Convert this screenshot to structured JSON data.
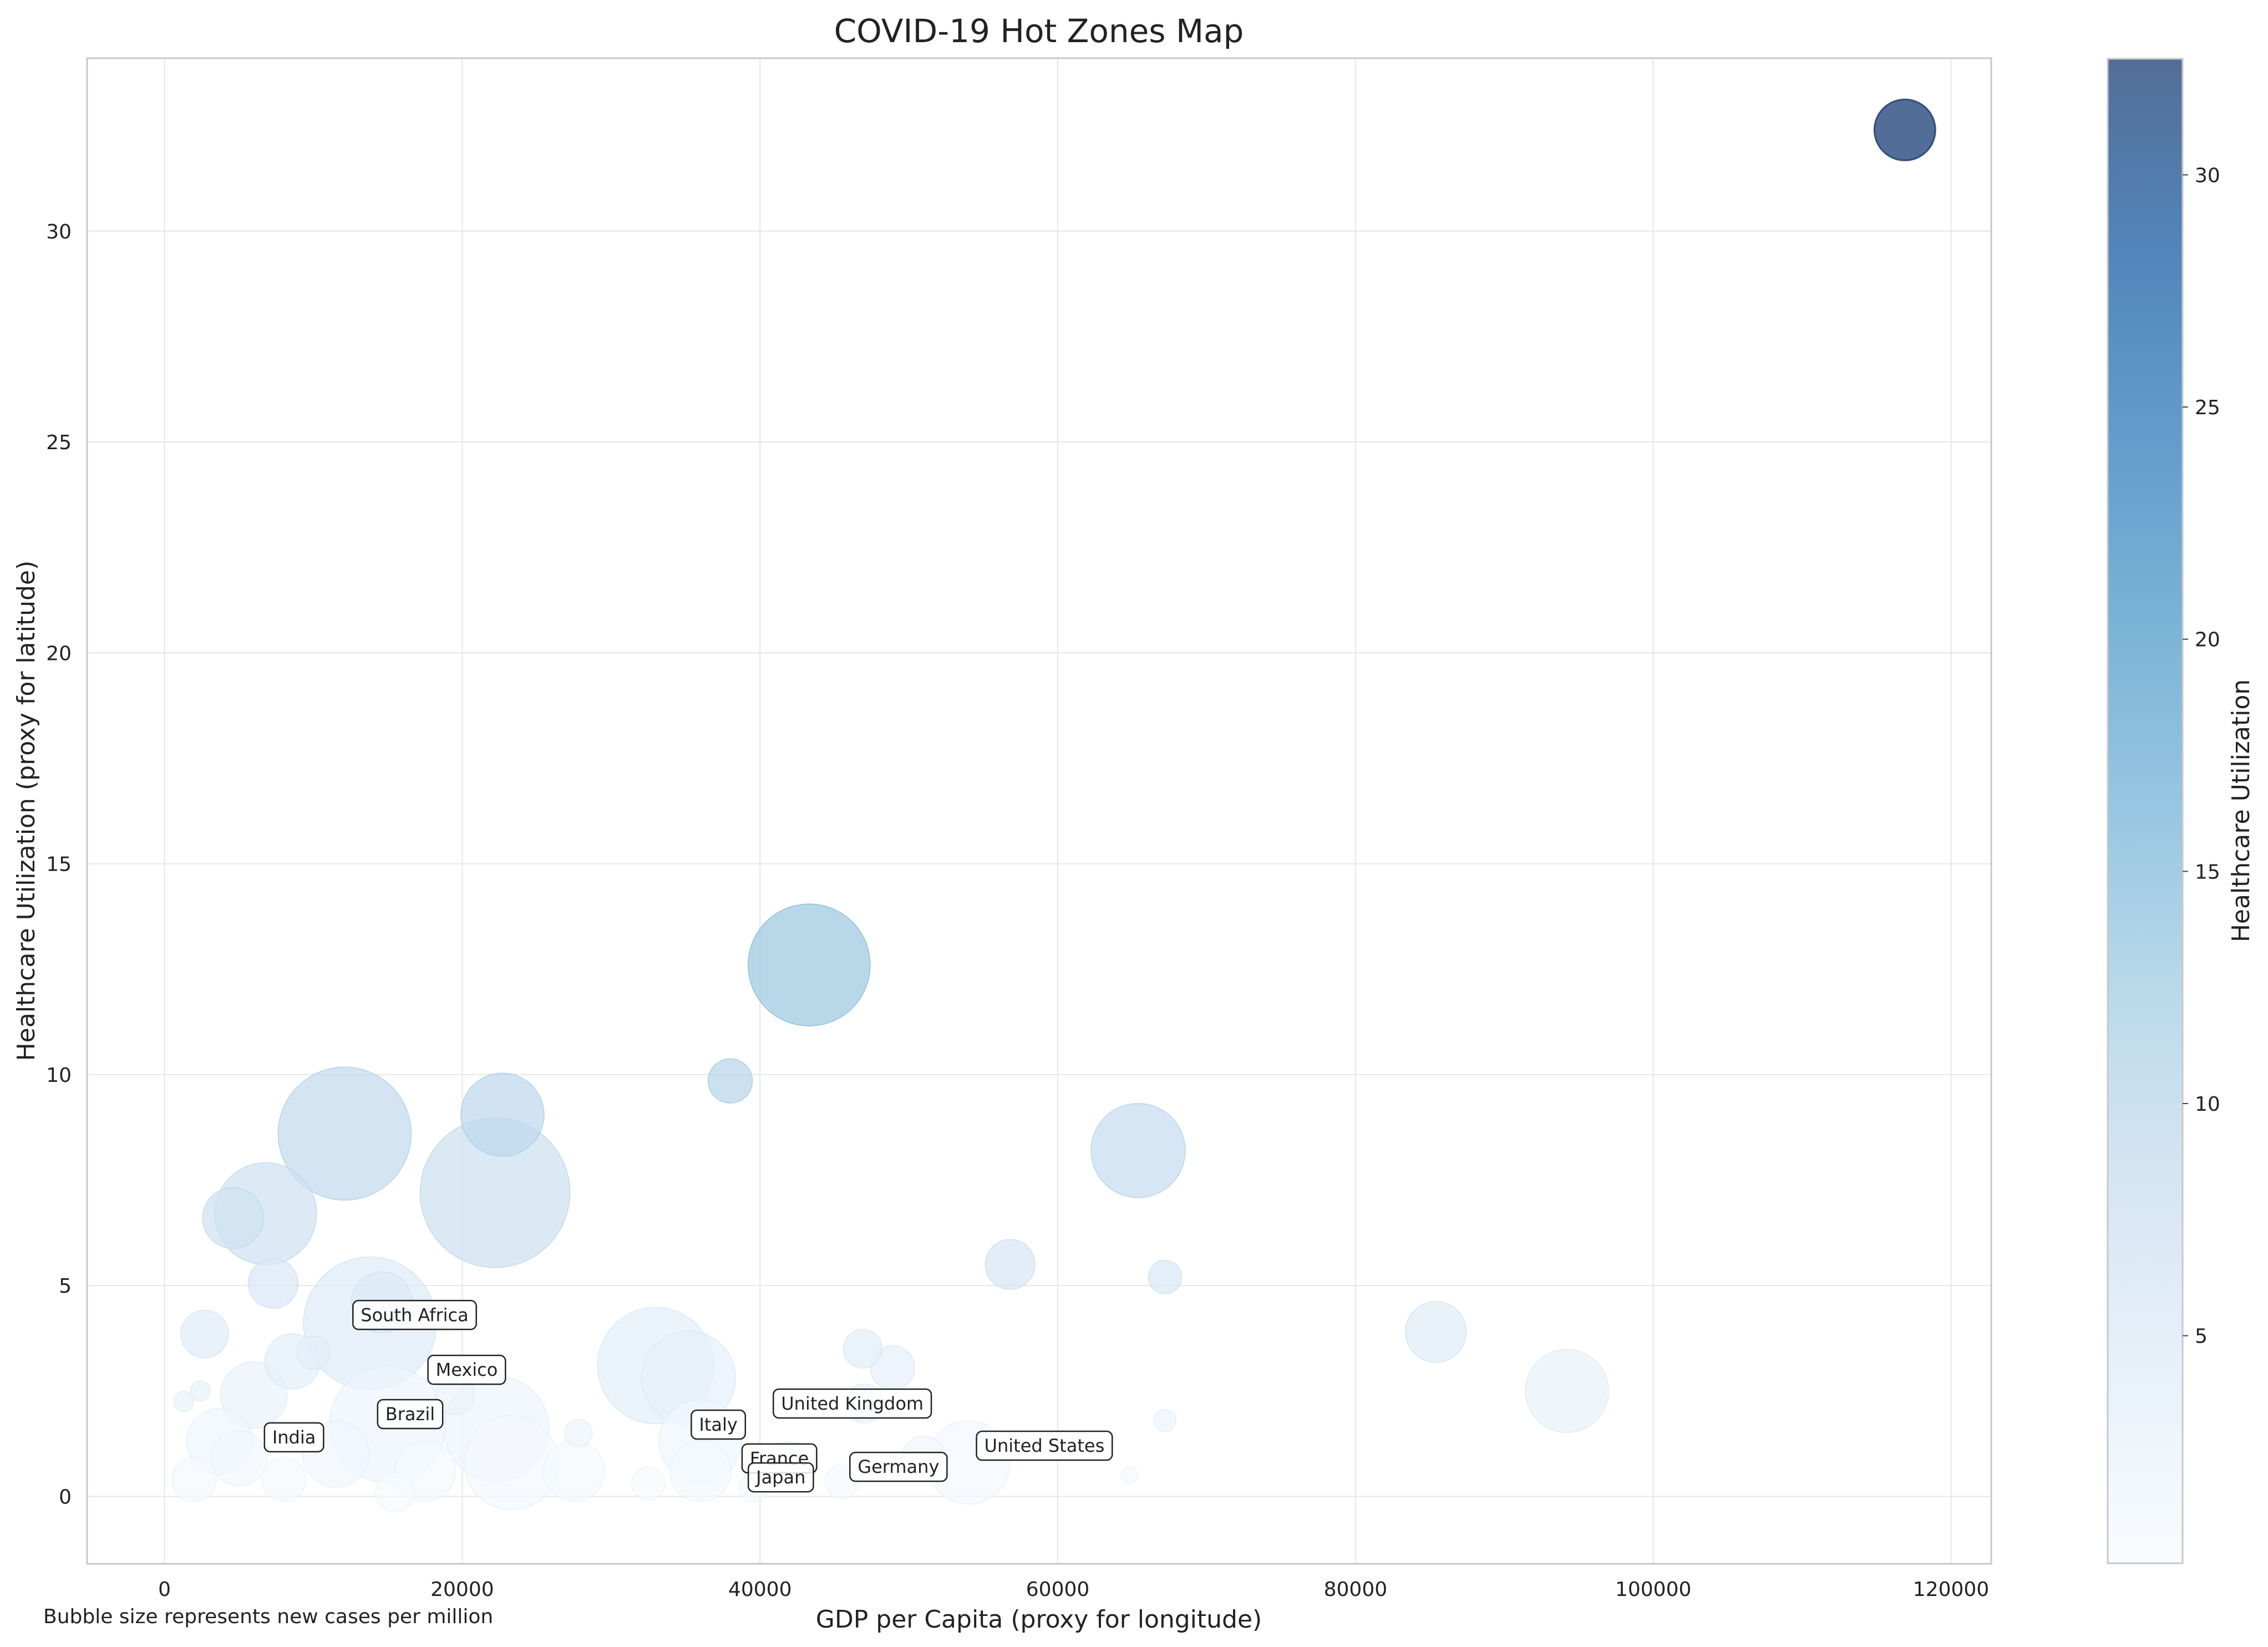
{
  "chart_data": {
    "type": "scatter",
    "title": "COVID-19 Hot Zones Map",
    "xlabel": "GDP per Capita (proxy for longitude)",
    "ylabel": "Healthcare Utilization (proxy for latitude)",
    "colorbar_label": "Healthcare Utilization",
    "note": "Bubble size represents new cases per million",
    "xlim": [
      -5200,
      122700
    ],
    "ylim": [
      -1.6,
      34.1
    ],
    "xticks": [
      0,
      20000,
      40000,
      60000,
      80000,
      100000,
      120000
    ],
    "xtick_labels": [
      "0",
      "20000",
      "40000",
      "60000",
      "80000",
      "100000",
      "120000"
    ],
    "yticks": [
      0,
      5,
      10,
      15,
      20,
      25,
      30
    ],
    "ytick_labels": [
      "0",
      "5",
      "10",
      "15",
      "20",
      "25",
      "30"
    ],
    "colorbar_range": [
      0.1,
      32.5
    ],
    "colorbar_ticks": [
      5,
      10,
      15,
      20,
      25,
      30
    ],
    "colorbar_tick_labels": [
      "5",
      "10",
      "15",
      "20",
      "25",
      "30"
    ],
    "colormap": "Blues",
    "grid": true,
    "points": [
      {
        "x": 116900,
        "y": 32.4,
        "size": 55
      },
      {
        "x": 43300,
        "y": 12.6,
        "size": 110
      },
      {
        "x": 38000,
        "y": 9.85,
        "size": 40
      },
      {
        "x": 12100,
        "y": 8.6,
        "size": 120
      },
      {
        "x": 22700,
        "y": 9.05,
        "size": 75
      },
      {
        "x": 22200,
        "y": 7.2,
        "size": 135
      },
      {
        "x": 6800,
        "y": 6.7,
        "size": 92
      },
      {
        "x": 4600,
        "y": 6.6,
        "size": 55
      },
      {
        "x": 65400,
        "y": 8.2,
        "size": 85
      },
      {
        "x": 56800,
        "y": 5.5,
        "size": 45
      },
      {
        "x": 67200,
        "y": 5.2,
        "size": 30
      },
      {
        "x": 7300,
        "y": 5.05,
        "size": 45
      },
      {
        "x": 85400,
        "y": 3.9,
        "size": 55
      },
      {
        "x": 94200,
        "y": 2.5,
        "size": 75
      },
      {
        "x": 2700,
        "y": 3.85,
        "size": 43
      },
      {
        "x": 13800,
        "y": 4.1,
        "size": 120
      },
      {
        "x": 14600,
        "y": 4.6,
        "size": 55
      },
      {
        "x": 33000,
        "y": 3.1,
        "size": 105
      },
      {
        "x": 35200,
        "y": 2.8,
        "size": 85
      },
      {
        "x": 46900,
        "y": 3.5,
        "size": 35
      },
      {
        "x": 48900,
        "y": 3.05,
        "size": 40
      },
      {
        "x": 8600,
        "y": 3.2,
        "size": 50
      },
      {
        "x": 10000,
        "y": 3.4,
        "size": 30
      },
      {
        "x": 6000,
        "y": 2.4,
        "size": 60
      },
      {
        "x": 1300,
        "y": 2.25,
        "size": 18
      },
      {
        "x": 2400,
        "y": 2.5,
        "size": 18
      },
      {
        "x": 15000,
        "y": 1.7,
        "size": 105
      },
      {
        "x": 22300,
        "y": 1.6,
        "size": 95
      },
      {
        "x": 23300,
        "y": 0.8,
        "size": 85
      },
      {
        "x": 27800,
        "y": 1.5,
        "size": 25
      },
      {
        "x": 27500,
        "y": 0.6,
        "size": 55
      },
      {
        "x": 36000,
        "y": 1.3,
        "size": 75
      },
      {
        "x": 36000,
        "y": 0.6,
        "size": 55
      },
      {
        "x": 3700,
        "y": 1.3,
        "size": 60
      },
      {
        "x": 2000,
        "y": 0.4,
        "size": 40
      },
      {
        "x": 5000,
        "y": 0.9,
        "size": 50
      },
      {
        "x": 8000,
        "y": 0.4,
        "size": 40
      },
      {
        "x": 11500,
        "y": 1.0,
        "size": 60
      },
      {
        "x": 17500,
        "y": 0.6,
        "size": 55
      },
      {
        "x": 15500,
        "y": 0.1,
        "size": 35
      },
      {
        "x": 32500,
        "y": 0.3,
        "size": 30
      },
      {
        "x": 42000,
        "y": 0.7,
        "size": 45
      },
      {
        "x": 45500,
        "y": 0.35,
        "size": 30
      },
      {
        "x": 47000,
        "y": 2.2,
        "size": 35
      },
      {
        "x": 54000,
        "y": 0.8,
        "size": 75
      },
      {
        "x": 67200,
        "y": 1.8,
        "size": 20
      },
      {
        "x": 64800,
        "y": 0.5,
        "size": 15
      },
      {
        "x": 39500,
        "y": 0.2,
        "size": 25
      },
      {
        "x": 51000,
        "y": 0.9,
        "size": 40
      },
      {
        "x": 19500,
        "y": 2.4,
        "size": 35
      }
    ],
    "annotations": [
      {
        "label": "South Africa",
        "x": 16800,
        "y": 4.3
      },
      {
        "label": "Mexico",
        "x": 20300,
        "y": 3.0
      },
      {
        "label": "Brazil",
        "x": 16500,
        "y": 1.95
      },
      {
        "label": "India",
        "x": 8700,
        "y": 1.4
      },
      {
        "label": "Italy",
        "x": 37200,
        "y": 1.7
      },
      {
        "label": "United Kingdom",
        "x": 46200,
        "y": 2.2
      },
      {
        "label": "United States",
        "x": 59100,
        "y": 1.2
      },
      {
        "label": "France",
        "x": 41300,
        "y": 0.9
      },
      {
        "label": "Germany",
        "x": 49300,
        "y": 0.7
      },
      {
        "label": "Japan",
        "x": 41400,
        "y": 0.45
      }
    ]
  }
}
